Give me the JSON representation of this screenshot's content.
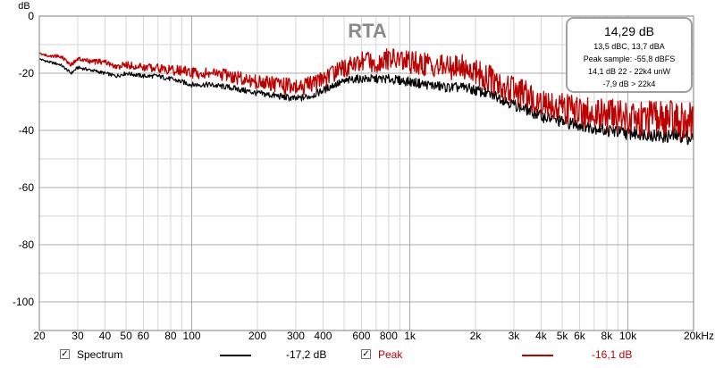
{
  "chart_data": {
    "type": "line",
    "title": "RTA",
    "ylabel": "dB",
    "xscale": "log",
    "xlim": [
      20,
      20000
    ],
    "ylim": [
      -110,
      0
    ],
    "grid": true,
    "ytick_values": [
      0,
      -20,
      -40,
      -60,
      -80,
      -100
    ],
    "ytick_labels": [
      "0",
      "-20",
      "-40",
      "-60",
      "-80",
      "-100"
    ],
    "xtick_values": [
      20,
      30,
      40,
      50,
      60,
      80,
      100,
      200,
      300,
      400,
      600,
      800,
      1000,
      2000,
      3000,
      4000,
      5000,
      6000,
      8000,
      10000,
      20000
    ],
    "xtick_labels": [
      "20",
      "30",
      "40",
      "50",
      "60",
      "80",
      "100",
      "200",
      "300",
      "400",
      "600",
      "800",
      "1k",
      "2k",
      "3k",
      "4k",
      "5k",
      "6k",
      "8k",
      "10k",
      "20kHz"
    ],
    "series": [
      {
        "name": "Spectrum",
        "color": "#000000",
        "level": "-17,2 dB",
        "x": [
          20,
          22,
          25,
          28,
          30,
          35,
          40,
          45,
          50,
          60,
          70,
          80,
          90,
          100,
          120,
          150,
          200,
          250,
          300,
          350,
          400,
          450,
          500,
          550,
          600,
          700,
          800,
          1000,
          1200,
          1500,
          1800,
          2000,
          2500,
          3000,
          3500,
          4000,
          5000,
          6000,
          7000,
          8000,
          10000,
          12000,
          14000,
          16000,
          18000,
          20000
        ],
        "y": [
          -15,
          -16,
          -17,
          -20,
          -18,
          -19,
          -20,
          -21,
          -20,
          -21,
          -21,
          -22,
          -23,
          -24,
          -24,
          -25,
          -27,
          -28,
          -29,
          -28,
          -26,
          -24,
          -23,
          -22,
          -22,
          -22,
          -22,
          -23,
          -24,
          -25,
          -25,
          -26,
          -28,
          -31,
          -33,
          -35,
          -37,
          -38,
          -39,
          -40,
          -41,
          -41,
          -42,
          -42,
          -42,
          -43
        ]
      },
      {
        "name": "Peak",
        "color": "#bb0000",
        "level": "-16,1 dB",
        "x": [
          20,
          22,
          25,
          28,
          30,
          35,
          40,
          45,
          50,
          60,
          70,
          80,
          90,
          100,
          120,
          150,
          200,
          250,
          300,
          350,
          400,
          450,
          500,
          550,
          600,
          700,
          800,
          1000,
          1200,
          1500,
          1800,
          2000,
          2500,
          3000,
          3500,
          4000,
          5000,
          6000,
          7000,
          8000,
          10000,
          12000,
          14000,
          16000,
          18000,
          20000
        ],
        "y": [
          -13,
          -14,
          -14,
          -17,
          -15,
          -16,
          -16,
          -18,
          -17,
          -18,
          -18,
          -19,
          -19,
          -20,
          -20,
          -21,
          -23,
          -24,
          -25,
          -24,
          -22,
          -20,
          -18,
          -17,
          -16,
          -16,
          -15,
          -16,
          -17,
          -18,
          -18,
          -20,
          -23,
          -26,
          -28,
          -30,
          -32,
          -33,
          -34,
          -35,
          -35,
          -36,
          -36,
          -36,
          -37,
          -37
        ]
      }
    ],
    "info_box": {
      "main": "14,29 dB",
      "lines": [
        "13,5 dBC, 13,7 dBA",
        "Peak sample: -55,8 dBFS",
        "14,1 dB 22 - 22k4 unW",
        "-7,9 dB > 22k4"
      ]
    },
    "legend": {
      "position": "bottom",
      "checked": [
        true,
        true
      ]
    }
  }
}
